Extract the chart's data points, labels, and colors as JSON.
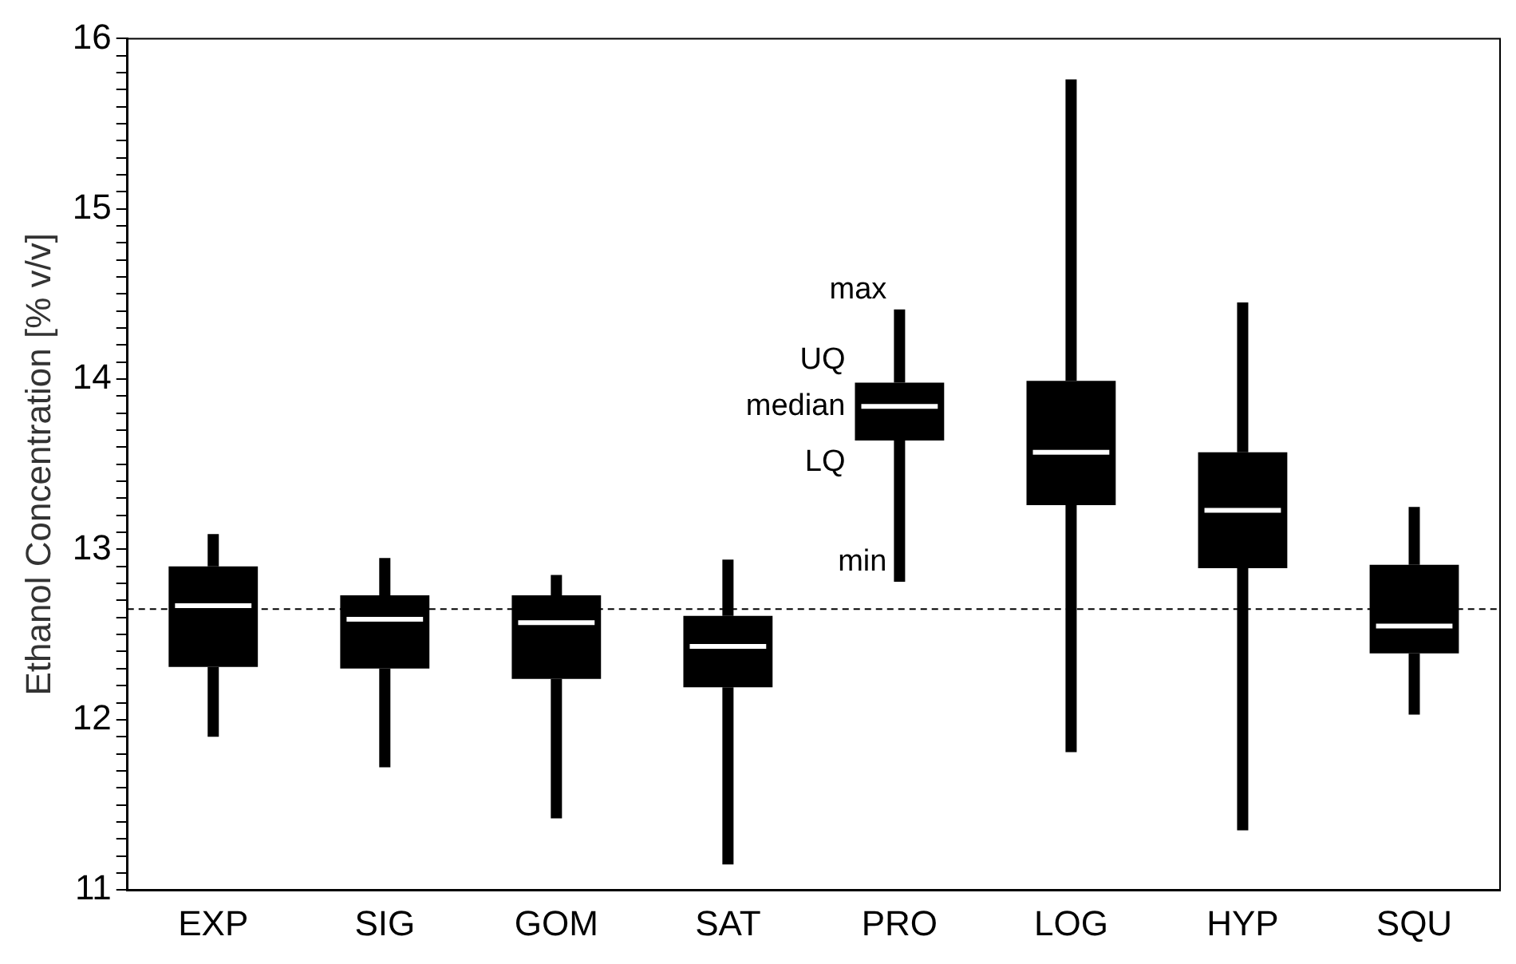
{
  "chart_data": {
    "type": "box",
    "ylabel": "Ethanol Concentration [% v/v]",
    "categories": [
      "EXP",
      "SIG",
      "GOM",
      "SAT",
      "PRO",
      "LOG",
      "HYP",
      "SQU"
    ],
    "color": "#000000",
    "boxes": [
      {
        "low": 11.9,
        "q1": 12.31,
        "median": 12.67,
        "q3": 12.9,
        "high": 13.09
      },
      {
        "low": 11.72,
        "q1": 12.3,
        "median": 12.59,
        "q3": 12.73,
        "high": 12.95
      },
      {
        "low": 11.42,
        "q1": 12.24,
        "median": 12.57,
        "q3": 12.73,
        "high": 12.85
      },
      {
        "low": 11.15,
        "q1": 12.19,
        "median": 12.43,
        "q3": 12.61,
        "high": 12.94
      },
      {
        "low": 12.81,
        "q1": 13.64,
        "median": 13.84,
        "q3": 13.98,
        "high": 14.41
      },
      {
        "low": 11.81,
        "q1": 13.26,
        "median": 13.57,
        "q3": 13.99,
        "high": 15.76
      },
      {
        "low": 11.35,
        "q1": 12.89,
        "median": 13.23,
        "q3": 13.57,
        "high": 14.45
      },
      {
        "low": 12.03,
        "q1": 12.39,
        "median": 12.55,
        "q3": 12.91,
        "high": 13.25
      }
    ],
    "ylim": [
      11,
      16
    ],
    "yticks": [
      11,
      {
        "value": 11.1,
        "label": null
      },
      {
        "value": 11.2,
        "label": null
      },
      {
        "value": 11.3,
        "label": null
      },
      {
        "value": 11.4,
        "label": null
      },
      {
        "value": 11.5,
        "label": null
      },
      {
        "value": 11.6,
        "label": null
      },
      {
        "value": 11.7,
        "label": null
      },
      {
        "value": 11.8,
        "label": null
      },
      {
        "value": 11.9,
        "label": null
      },
      12,
      {
        "value": 12.1,
        "label": null
      },
      {
        "value": 12.2,
        "label": null
      },
      {
        "value": 12.3,
        "label": null
      },
      {
        "value": 12.4,
        "label": null
      },
      {
        "value": 12.5,
        "label": null
      },
      {
        "value": 12.6,
        "label": null
      },
      {
        "value": 12.7,
        "label": null
      },
      {
        "value": 12.8,
        "label": null
      },
      {
        "value": 12.9,
        "label": null
      },
      13,
      {
        "value": 13.1,
        "label": null
      },
      {
        "value": 13.2,
        "label": null
      },
      {
        "value": 13.3,
        "label": null
      },
      {
        "value": 13.4,
        "label": null
      },
      {
        "value": 13.5,
        "label": null
      },
      {
        "value": 13.6,
        "label": null
      },
      {
        "value": 13.7,
        "label": null
      },
      {
        "value": 13.8,
        "label": null
      },
      {
        "value": 13.9,
        "label": null
      },
      14,
      {
        "value": 14.1,
        "label": null
      },
      {
        "value": 14.2,
        "label": null
      },
      {
        "value": 14.3,
        "label": null
      },
      {
        "value": 14.4,
        "label": null
      },
      {
        "value": 14.5,
        "label": null
      },
      {
        "value": 14.6,
        "label": null
      },
      {
        "value": 14.7,
        "label": null
      },
      {
        "value": 14.8,
        "label": null
      },
      {
        "value": 14.9,
        "label": null
      },
      15,
      {
        "value": 15.1,
        "label": null
      },
      {
        "value": 15.2,
        "label": null
      },
      {
        "value": 15.3,
        "label": null
      },
      {
        "value": 15.4,
        "label": null
      },
      {
        "value": 15.5,
        "label": null
      },
      {
        "value": 15.6,
        "label": null
      },
      {
        "value": 15.7,
        "label": null
      },
      {
        "value": 15.8,
        "label": null
      },
      {
        "value": 15.9,
        "label": null
      },
      16
    ],
    "ref_lines": [
      {
        "axis": "y",
        "value": 12.65,
        "line_style": "dashed",
        "color": "#000000"
      }
    ],
    "annotations": [
      "max",
      "UQ",
      "median",
      "LQ",
      "min"
    ],
    "grid": false,
    "legend": false
  }
}
